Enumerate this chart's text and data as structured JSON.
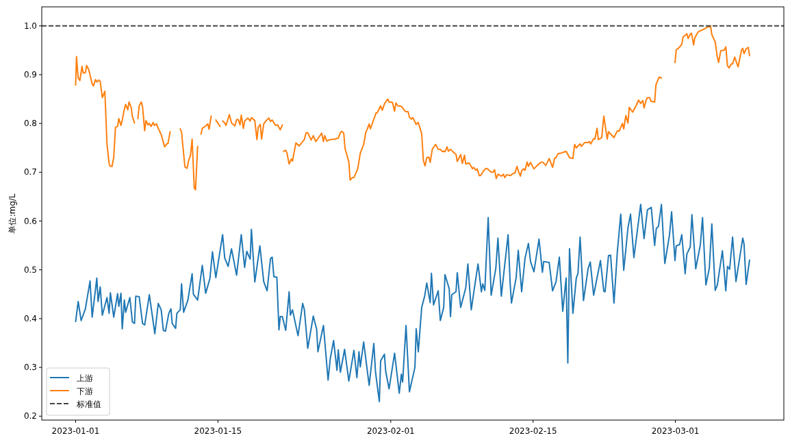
{
  "chart_data": {
    "type": "line",
    "ylabel": "单位:mg/L",
    "legend": "bottom left",
    "xlim": [
      "2022-12-28T16:00",
      "2023-03-11T16:00"
    ],
    "ylim": [
      0.192,
      1.039
    ],
    "xticks": [
      "2023-01-01",
      "2023-01-15",
      "2023-02-01",
      "2023-02-15",
      "2023-03-01"
    ],
    "yticks": [
      0.2,
      0.3,
      0.4,
      0.5,
      0.6,
      0.7,
      0.8,
      0.9,
      {
        "value": 1,
        "label": "1.0"
      }
    ],
    "ref_lines": [
      {
        "axis": "y",
        "value": 1,
        "label": "标准值",
        "color": "#444444",
        "line_style": "dashed"
      }
    ],
    "series": [
      {
        "name": "上游",
        "color": "#1f77b4",
        "x": [
          "2023-01-01T00:00",
          "2023-01-01T06:00",
          "2023-01-01T13:00",
          "2023-01-01T23:00",
          "2023-01-02T10:00",
          "2023-01-02T15:00",
          "2023-01-03T02:00",
          "2023-01-03T05:00",
          "2023-01-03T10:00",
          "2023-01-03T15:00",
          "2023-01-04T02:00",
          "2023-01-04T07:00",
          "2023-01-04T10:00",
          "2023-01-04T18:00",
          "2023-01-05T03:00",
          "2023-01-05T06:00",
          "2023-01-05T11:00",
          "2023-01-05T14:00",
          "2023-01-05T19:00",
          "2023-01-05T22:00",
          "2023-01-06T08:00",
          "2023-01-06T14:00",
          "2023-01-06T19:00",
          "2023-01-06T22:00",
          "2023-01-07T06:00",
          "2023-01-07T14:00",
          "2023-01-07T19:00",
          "2023-01-08T06:00",
          "2023-01-08T19:00",
          "2023-01-09T03:00",
          "2023-01-09T10:00",
          "2023-01-09T15:00",
          "2023-01-09T20:00",
          "2023-01-10T04:00",
          "2023-01-10T09:00",
          "2023-01-10T12:00",
          "2023-01-10T20:00",
          "2023-01-10T23:00",
          "2023-01-11T07:00",
          "2023-01-11T10:00",
          "2023-01-11T15:00",
          "2023-01-12T01:00",
          "2023-01-12T11:00",
          "2023-01-12T14:00",
          "2023-01-13T00:00",
          "2023-01-13T11:00",
          "2023-01-13T19:00",
          "2023-01-14T05:00",
          "2023-01-14T11:00",
          "2023-01-14T19:00",
          "2023-01-15T11:00",
          "2023-01-15T16:00",
          "2023-01-16T00:00",
          "2023-01-16T08:00",
          "2023-01-16T20:00",
          "2023-01-17T07:00",
          "2023-01-17T15:00",
          "2023-01-17T20:00",
          "2023-01-18T04:00",
          "2023-01-18T07:00",
          "2023-01-18T15:00",
          "2023-01-19T03:00",
          "2023-01-19T12:00",
          "2023-01-19T20:00",
          "2023-01-20T04:00",
          "2023-01-20T08:00",
          "2023-01-20T12:00",
          "2023-01-20T19:00",
          "2023-01-21T00:00",
          "2023-01-21T03:00",
          "2023-01-21T08:00",
          "2023-01-21T16:00",
          "2023-01-22T00:00",
          "2023-01-22T03:00",
          "2023-01-22T08:00",
          "2023-01-22T21:00",
          "2023-01-23T08:00",
          "2023-01-23T12:00",
          "2023-01-23T20:00",
          "2023-01-24T09:00",
          "2023-01-24T17:00",
          "2023-01-24T20:00",
          "2023-01-25T09:00",
          "2023-01-25T20:00",
          "2023-01-26T01:00",
          "2023-01-26T09:00",
          "2023-01-26T17:00",
          "2023-01-26T20:00",
          "2023-01-27T01:00",
          "2023-01-27T11:00",
          "2023-01-27T21:00",
          "2023-01-28T09:00",
          "2023-01-28T16:00",
          "2023-01-28T21:00",
          "2023-01-29T00:00",
          "2023-01-29T08:00",
          "2023-01-29T21:00",
          "2023-01-30T08:00",
          "2023-01-30T12:00",
          "2023-01-30T21:00",
          "2023-01-31T00:00",
          "2023-01-31T09:00",
          "2023-01-31T12:00",
          "2023-01-31T20:00",
          "2023-02-01T09:00",
          "2023-02-01T20:00",
          "2023-02-02T01:00",
          "2023-02-02T04:00",
          "2023-02-02T12:00",
          "2023-02-02T20:00",
          "2023-02-03T09:00",
          "2023-02-03T12:00",
          "2023-02-03T17:00",
          "2023-02-04T01:00",
          "2023-02-04T08:00",
          "2023-02-04T13:00",
          "2023-02-04T21:00",
          "2023-02-05T00:00",
          "2023-02-05T05:00",
          "2023-02-05T16:00",
          "2023-02-05T21:00",
          "2023-02-06T05:00",
          "2023-02-06T08:00",
          "2023-02-06T18:00",
          "2023-02-06T21:00",
          "2023-02-07T00:00",
          "2023-02-07T10:00",
          "2023-02-07T13:00",
          "2023-02-07T21:00",
          "2023-02-08T09:00",
          "2023-02-08T14:00",
          "2023-02-08T22:00",
          "2023-02-09T04:00",
          "2023-02-09T14:00",
          "2023-02-09T22:00",
          "2023-02-10T01:00",
          "2023-02-10T06:00",
          "2023-02-10T14:00",
          "2023-02-10T21:00",
          "2023-02-11T08:00",
          "2023-02-11T13:00",
          "2023-02-11T21:00",
          "2023-02-12T02:00",
          "2023-02-12T13:00",
          "2023-02-12T18:00",
          "2023-02-12T21:00",
          "2023-02-13T08:00",
          "2023-02-13T13:00",
          "2023-02-13T21:00",
          "2023-02-14T05:00",
          "2023-02-14T13:00",
          "2023-02-14T18:00",
          "2023-02-15T02:00",
          "2023-02-15T14:00",
          "2023-02-15T22:00",
          "2023-02-16T01:00",
          "2023-02-16T14:00",
          "2023-02-16T22:00",
          "2023-02-17T06:00",
          "2023-02-17T14:00",
          "2023-02-17T22:00",
          "2023-02-18T06:00",
          "2023-02-18T10:00",
          "2023-02-18T14:00",
          "2023-02-18T22:00",
          "2023-02-19T06:00",
          "2023-02-19T10:00",
          "2023-02-19T15:00",
          "2023-02-19T23:00",
          "2023-02-20T10:00",
          "2023-02-20T15:00",
          "2023-02-20T23:00",
          "2023-02-21T15:00",
          "2023-02-21T23:00",
          "2023-02-22T02:00",
          "2023-02-22T10:00",
          "2023-02-22T15:00",
          "2023-02-22T23:00",
          "2023-02-23T07:00",
          "2023-02-23T15:00",
          "2023-02-23T22:00",
          "2023-02-24T08:00",
          "2023-02-24T14:00",
          "2023-02-24T22:00",
          "2023-02-25T14:00",
          "2023-02-25T22:00",
          "2023-02-26T06:00",
          "2023-02-26T15:00",
          "2023-02-26T23:00",
          "2023-02-27T03:00",
          "2023-02-27T08:00",
          "2023-02-27T15:00",
          "2023-02-27T23:00",
          "2023-02-28T10:00",
          "2023-02-28T15:00",
          "2023-02-28T23:00",
          "2023-03-01T02:00",
          "2023-03-01T10:00",
          "2023-03-01T15:00",
          "2023-03-01T23:00",
          "2023-03-02T03:00",
          "2023-03-02T11:00",
          "2023-03-02T15:00",
          "2023-03-03T00:00",
          "2023-03-03T11:00",
          "2023-03-03T16:00",
          "2023-03-04T00:00",
          "2023-03-04T08:00",
          "2023-03-04T14:00",
          "2023-03-04T22:00",
          "2023-03-05T03:00",
          "2023-03-05T15:00",
          "2023-03-05T23:00",
          "2023-03-06T03:00",
          "2023-03-06T08:00",
          "2023-03-06T15:00",
          "2023-03-06T23:00",
          "2023-03-07T15:00",
          "2023-03-07T18:00",
          "2023-03-07T23:00",
          "2023-03-08T07:00"
        ],
        "values": [
          0.394,
          0.435,
          0.396,
          0.42,
          0.477,
          0.403,
          0.483,
          0.435,
          0.465,
          0.407,
          0.443,
          0.411,
          0.453,
          0.403,
          0.451,
          0.425,
          0.452,
          0.379,
          0.438,
          0.413,
          0.443,
          0.393,
          0.39,
          0.446,
          0.445,
          0.39,
          0.387,
          0.449,
          0.369,
          0.431,
          0.418,
          0.376,
          0.374,
          0.411,
          0.42,
          0.39,
          0.38,
          0.411,
          0.418,
          0.471,
          0.413,
          0.438,
          0.492,
          0.45,
          0.438,
          0.509,
          0.452,
          0.482,
          0.537,
          0.484,
          0.572,
          0.524,
          0.507,
          0.543,
          0.489,
          0.572,
          0.505,
          0.538,
          0.522,
          0.583,
          0.475,
          0.549,
          0.476,
          0.457,
          0.523,
          0.526,
          0.486,
          0.485,
          0.377,
          0.404,
          0.404,
          0.376,
          0.455,
          0.407,
          0.418,
          0.365,
          0.431,
          0.418,
          0.339,
          0.405,
          0.378,
          0.332,
          0.386,
          0.274,
          0.317,
          0.355,
          0.294,
          0.336,
          0.29,
          0.337,
          0.272,
          0.335,
          0.279,
          0.332,
          0.301,
          0.352,
          0.263,
          0.349,
          0.29,
          0.23,
          0.313,
          0.327,
          0.292,
          0.256,
          0.329,
          0.247,
          0.286,
          0.27,
          0.386,
          0.25,
          0.3,
          0.379,
          0.332,
          0.423,
          0.446,
          0.473,
          0.433,
          0.493,
          0.428,
          0.457,
          0.396,
          0.423,
          0.49,
          0.461,
          0.404,
          0.449,
          0.455,
          0.494,
          0.423,
          0.463,
          0.512,
          0.418,
          0.454,
          0.512,
          0.455,
          0.471,
          0.458,
          0.607,
          0.448,
          0.503,
          0.565,
          0.446,
          0.486,
          0.572,
          0.47,
          0.432,
          0.484,
          0.54,
          0.455,
          0.524,
          0.554,
          0.517,
          0.496,
          0.563,
          0.495,
          0.517,
          0.515,
          0.457,
          0.475,
          0.526,
          0.415,
          0.483,
          0.309,
          0.543,
          0.411,
          0.483,
          0.493,
          0.567,
          0.437,
          0.503,
          0.516,
          0.448,
          0.519,
          0.456,
          0.455,
          0.529,
          0.53,
          0.432,
          0.538,
          0.614,
          0.499,
          0.586,
          0.614,
          0.525,
          0.634,
          0.564,
          0.623,
          0.628,
          0.55,
          0.585,
          0.589,
          0.634,
          0.513,
          0.571,
          0.619,
          0.519,
          0.549,
          0.552,
          0.572,
          0.492,
          0.532,
          0.547,
          0.613,
          0.502,
          0.552,
          0.607,
          0.469,
          0.503,
          0.594,
          0.458,
          0.469,
          0.539,
          0.457,
          0.507,
          0.501,
          0.567,
          0.476,
          0.565,
          0.553,
          0.47,
          0.52
        ]
      },
      {
        "name": "下游",
        "color": "#ff7f0e",
        "x": [
          "2023-01-01T00:00",
          "2023-01-01T02:00",
          "2023-01-01T06:00",
          "2023-01-01T10:00",
          "2023-01-01T15:00",
          "2023-01-01T18:00",
          "2023-01-01T23:00",
          "2023-01-02T02:00",
          "2023-01-02T07:00",
          "2023-01-02T15:00",
          "2023-01-02T18:00",
          "2023-01-02T23:00",
          "2023-01-03T02:00",
          "2023-01-03T07:00",
          "2023-01-03T10:00",
          "2023-01-03T15:00",
          "2023-01-03T21:00",
          "2023-01-04T02:00",
          "2023-01-04T07:00",
          "2023-01-04T10:00",
          "2023-01-04T14:00",
          "2023-01-04T18:00",
          "2023-01-04T22:00",
          "2023-01-05T03:00",
          "2023-01-05T06:00",
          "2023-01-05T11:00",
          "2023-01-05T14:00",
          "2023-01-05T19:00",
          "2023-01-05T22:00",
          "2023-01-06T03:00",
          "2023-01-06T06:00",
          "2023-01-06T11:00",
          "2023-01-06T14:00",
          "2023-01-06T19:00",
          "2023-01-06T22:00",
          "2023-01-07T03:00",
          "2023-01-07T06:00",
          "2023-01-07T11:00",
          "2023-01-07T14:00",
          "2023-01-07T19:00",
          "2023-01-07T22:00",
          "2023-01-08T03:00",
          "2023-01-08T06:00",
          "2023-01-08T10:00",
          "2023-01-08T15:00",
          "2023-01-08T18:00",
          "2023-01-08T23:00",
          "2023-01-09T02:00",
          "2023-01-09T10:00",
          "2023-01-09T18:00",
          "2023-01-09T23:00",
          "2023-01-10T02:00",
          "2023-01-10T07:00",
          "2023-01-10T18:00",
          "2023-01-11T07:00",
          "2023-01-11T10:00",
          "2023-01-11T18:00",
          "2023-01-11T23:00",
          "2023-01-12T03:00",
          "2023-01-12T07:00",
          "2023-01-12T11:00",
          "2023-01-12T16:00",
          "2023-01-12T19:00",
          "2023-01-13T00:00",
          "2023-01-13T03:00",
          "2023-01-13T08:00",
          "2023-01-13T11:00",
          "2023-01-13T16:00",
          "2023-01-13T19:00",
          "2023-01-14T00:00",
          "2023-01-14T03:00",
          "2023-01-14T08:00",
          "2023-01-14T13:00",
          "2023-01-14T19:00",
          "2023-01-15T05:00",
          "2023-01-15T08:00",
          "2023-01-15T11:00",
          "2023-01-15T15:00",
          "2023-01-15T19:00",
          "2023-01-16T03:00",
          "2023-01-16T08:00",
          "2023-01-16T16:00",
          "2023-01-16T20:00",
          "2023-01-17T00:00",
          "2023-01-17T04:00",
          "2023-01-17T07:00",
          "2023-01-17T12:00",
          "2023-01-17T15:00",
          "2023-01-17T23:00",
          "2023-01-18T04:00",
          "2023-01-18T07:00",
          "2023-01-18T15:00",
          "2023-01-18T20:00",
          "2023-01-18T23:00",
          "2023-01-19T04:00",
          "2023-01-19T07:00",
          "2023-01-19T12:00",
          "2023-01-19T17:00",
          "2023-01-20T00:00",
          "2023-01-20T04:00",
          "2023-01-20T08:00",
          "2023-01-20T16:00",
          "2023-01-20T21:00",
          "2023-01-21T03:00",
          "2023-01-21T08:00",
          "2023-01-21T09:00",
          "2023-01-21T11:00",
          "2023-01-21T16:00",
          "2023-01-21T19:00",
          "2023-01-22T00:00",
          "2023-01-22T05:00",
          "2023-01-22T08:00",
          "2023-01-22T16:00",
          "2023-01-23T00:00",
          "2023-01-23T08:00",
          "2023-01-23T12:00",
          "2023-01-23T16:00",
          "2023-01-23T20:00",
          "2023-01-24T04:00",
          "2023-01-24T09:00",
          "2023-01-24T15:00",
          "2023-01-25T05:00",
          "2023-01-25T09:00",
          "2023-01-25T12:00",
          "2023-01-25T17:00",
          "2023-01-26T01:00",
          "2023-01-26T12:00",
          "2023-01-26T20:00",
          "2023-01-27T01:00",
          "2023-01-27T04:00",
          "2023-01-27T09:00",
          "2023-01-27T12:00",
          "2023-01-27T21:00",
          "2023-01-28T00:00",
          "2023-01-28T05:00",
          "2023-01-28T09:00",
          "2023-01-28T18:00",
          "2023-01-29T00:00",
          "2023-01-29T08:00",
          "2023-01-29T13:00",
          "2023-01-29T16:00",
          "2023-01-29T21:00",
          "2023-01-30T00:00",
          "2023-01-30T13:00",
          "2023-01-30T16:00",
          "2023-01-31T00:00",
          "2023-01-31T04:00",
          "2023-01-31T09:00",
          "2023-01-31T17:00",
          "2023-01-31T20:00",
          "2023-02-01T04:00",
          "2023-02-01T09:00",
          "2023-02-01T12:00",
          "2023-02-01T17:00",
          "2023-02-02T01:00",
          "2023-02-02T09:00",
          "2023-02-02T12:00",
          "2023-02-02T17:00",
          "2023-02-02T20:00",
          "2023-02-03T01:00",
          "2023-02-03T04:00",
          "2023-02-03T12:00",
          "2023-02-03T17:00",
          "2023-02-04T01:00",
          "2023-02-04T05:00",
          "2023-02-04T09:00",
          "2023-02-04T13:00",
          "2023-02-04T18:00",
          "2023-02-04T21:00",
          "2023-02-05T02:00",
          "2023-02-05T10:00",
          "2023-02-05T16:00",
          "2023-02-05T21:00",
          "2023-02-06T02:00",
          "2023-02-06T05:00",
          "2023-02-06T08:00",
          "2023-02-06T13:00",
          "2023-02-06T16:00",
          "2023-02-06T21:00",
          "2023-02-07T05:00",
          "2023-02-07T10:00",
          "2023-02-07T13:00",
          "2023-02-07T21:00",
          "2023-02-08T01:00",
          "2023-02-08T06:00",
          "2023-02-08T09:00",
          "2023-02-08T17:00",
          "2023-02-09T01:00",
          "2023-02-09T04:00",
          "2023-02-09T09:00",
          "2023-02-09T12:00",
          "2023-02-09T17:00",
          "2023-02-09T20:00",
          "2023-02-10T04:00",
          "2023-02-10T09:00",
          "2023-02-10T12:00",
          "2023-02-10T21:00",
          "2023-02-11T01:00",
          "2023-02-11T05:00",
          "2023-02-11T09:00",
          "2023-02-11T13:00",
          "2023-02-11T21:00",
          "2023-02-12T02:00",
          "2023-02-12T05:00",
          "2023-02-12T10:00",
          "2023-02-12T18:00",
          "2023-02-13T02:00",
          "2023-02-13T05:00",
          "2023-02-13T10:00",
          "2023-02-13T13:00",
          "2023-02-13T18:00",
          "2023-02-13T21:00",
          "2023-02-14T02:00",
          "2023-02-14T05:00",
          "2023-02-14T10:00",
          "2023-02-14T13:00",
          "2023-02-14T18:00",
          "2023-02-15T02:00",
          "2023-02-15T10:00",
          "2023-02-15T18:00",
          "2023-02-15T22:00",
          "2023-02-16T06:00",
          "2023-02-16T14:00",
          "2023-02-16T22:00",
          "2023-02-17T03:00",
          "2023-02-17T06:00",
          "2023-02-17T11:00",
          "2023-02-17T17:00",
          "2023-02-18T06:00",
          "2023-02-18T14:00",
          "2023-02-18T22:00",
          "2023-02-19T02:00",
          "2023-02-19T06:00",
          "2023-02-19T15:00",
          "2023-02-19T18:00",
          "2023-02-20T02:00",
          "2023-02-20T10:00",
          "2023-02-20T13:00",
          "2023-02-20T16:00",
          "2023-02-20T23:00",
          "2023-02-21T02:00",
          "2023-02-21T07:00",
          "2023-02-21T10:00",
          "2023-02-21T18:00",
          "2023-02-21T23:00",
          "2023-02-22T07:00",
          "2023-02-22T10:00",
          "2023-02-22T23:00",
          "2023-02-23T07:00",
          "2023-02-23T11:00",
          "2023-02-23T19:00",
          "2023-02-23T22:00",
          "2023-02-24T03:00",
          "2023-02-24T08:00",
          "2023-02-24T11:00",
          "2023-02-24T19:00",
          "2023-02-25T03:00",
          "2023-02-25T09:00",
          "2023-02-25T14:00",
          "2023-02-25T19:00",
          "2023-02-25T22:00",
          "2023-02-26T03:00",
          "2023-02-26T06:00",
          "2023-02-26T11:00",
          "2023-02-26T15:00",
          "2023-02-26T23:00",
          "2023-02-27T02:00",
          "2023-02-27T07:00",
          "2023-02-27T10:00",
          "2023-02-27T15:00",
          "2023-02-28T07:00",
          "2023-02-28T23:00",
          "2023-03-01T02:00",
          "2023-03-01T07:00",
          "2023-03-01T15:00",
          "2023-03-01T18:00",
          "2023-03-02T03:00",
          "2023-03-02T06:00",
          "2023-03-02T11:00",
          "2023-03-02T14:00",
          "2023-03-02T19:00",
          "2023-03-02T22:00",
          "2023-03-03T06:00",
          "2023-03-03T11:00",
          "2023-03-03T19:00",
          "2023-03-04T03:00",
          "2023-03-04T11:00",
          "2023-03-04T14:00",
          "2023-03-04T22:00",
          "2023-03-05T03:00",
          "2023-03-05T06:00",
          "2023-03-05T11:00",
          "2023-03-05T19:00",
          "2023-03-05T23:00",
          "2023-03-06T03:00",
          "2023-03-06T07:00",
          "2023-03-06T12:00",
          "2023-03-06T15:00",
          "2023-03-06T20:00",
          "2023-03-07T04:00",
          "2023-03-07T12:00",
          "2023-03-07T15:00",
          "2023-03-07T18:00",
          "2023-03-07T23:00",
          "2023-03-08T04:00",
          "2023-03-08T07:00"
        ],
        "values": [
          0.879,
          0.937,
          0.893,
          0.888,
          0.917,
          0.903,
          0.904,
          0.919,
          0.91,
          0.881,
          0.877,
          0.89,
          0.885,
          0.889,
          0.886,
          0.853,
          0.866,
          0.758,
          0.718,
          0.712,
          0.712,
          0.731,
          0.792,
          0.794,
          0.81,
          0.796,
          0.807,
          0.829,
          0.839,
          0.828,
          0.844,
          0.833,
          0.814,
          0.801,
          null,
          0.81,
          0.836,
          0.844,
          0.834,
          0.785,
          0.806,
          0.797,
          0.8,
          0.794,
          0.802,
          0.796,
          0.799,
          0.792,
          0.777,
          0.752,
          0.758,
          0.759,
          0.783,
          null,
          0.789,
          0.782,
          0.711,
          0.708,
          0.725,
          0.734,
          0.768,
          0.668,
          0.664,
          0.753,
          null,
          0.778,
          0.79,
          0.793,
          0.795,
          0.799,
          0.788,
          0.815,
          null,
          0.807,
          0.794,
          null,
          0.805,
          0.802,
          0.796,
          0.818,
          0.801,
          0.795,
          0.808,
          0.808,
          0.797,
          0.817,
          0.79,
          0.805,
          0.811,
          0.805,
          0.812,
          0.806,
          0.767,
          0.792,
          0.798,
          0.768,
          0.799,
          0.805,
          0.811,
          0.804,
          0.807,
          0.796,
          0.797,
          0.787,
          0.797,
          null,
          0.743,
          0.745,
          0.739,
          0.717,
          0.727,
          0.723,
          0.76,
          0.754,
          0.763,
          0.767,
          0.781,
          0.781,
          0.766,
          0.775,
          0.763,
          0.78,
          0.763,
          0.775,
          0.764,
          0.767,
          0.768,
          0.77,
          0.781,
          0.784,
          0.78,
          0.749,
          0.721,
          0.684,
          0.689,
          0.689,
          0.707,
          0.739,
          0.757,
          0.782,
          0.787,
          0.799,
          0.789,
          0.821,
          0.822,
          0.836,
          0.827,
          0.84,
          0.85,
          0.844,
          0.843,
          0.825,
          0.842,
          0.836,
          0.835,
          0.826,
          0.824,
          0.824,
          0.813,
          0.809,
          0.812,
          0.798,
          0.802,
          0.779,
          0.724,
          0.713,
          0.73,
          0.731,
          0.72,
          0.747,
          0.757,
          0.747,
          0.747,
          0.742,
          0.743,
          0.742,
          0.752,
          0.743,
          0.747,
          0.74,
          0.737,
          0.722,
          0.736,
          0.718,
          0.735,
          0.717,
          0.719,
          0.707,
          0.71,
          0.704,
          0.707,
          0.693,
          0.693,
          0.704,
          0.708,
          0.707,
          0.7,
          0.7,
          0.705,
          0.687,
          0.696,
          0.692,
          0.696,
          0.689,
          0.695,
          0.693,
          0.698,
          0.698,
          0.712,
          0.703,
          0.692,
          0.703,
          0.707,
          0.704,
          0.721,
          0.712,
          0.72,
          0.707,
          0.714,
          0.72,
          0.721,
          0.714,
          0.728,
          0.71,
          0.729,
          0.73,
          0.738,
          0.739,
          0.743,
          0.73,
          0.728,
          0.757,
          0.75,
          0.758,
          0.753,
          0.761,
          0.761,
          0.763,
          0.758,
          0.769,
          0.768,
          0.79,
          0.767,
          0.771,
          0.815,
          0.768,
          0.783,
          0.771,
          0.785,
          0.784,
          0.8,
          0.789,
          0.816,
          0.801,
          0.833,
          0.823,
          0.836,
          0.848,
          0.841,
          0.847,
          0.832,
          0.848,
          0.853,
          0.853,
          0.845,
          0.844,
          0.879,
          0.89,
          0.895,
          0.893,
          null,
          0.925,
          0.951,
          0.954,
          0.962,
          0.977,
          0.984,
          0.974,
          0.983,
          0.985,
          0.961,
          0.976,
          0.988,
          0.99,
          0.993,
          0.997,
          1.0,
          0.982,
          0.967,
          0.936,
          0.925,
          0.949,
          0.95,
          0.957,
          0.918,
          0.914,
          0.922,
          0.922,
          0.936,
          0.916,
          0.95,
          0.954,
          0.943,
          0.953,
          0.956,
          0.939
        ]
      }
    ]
  }
}
